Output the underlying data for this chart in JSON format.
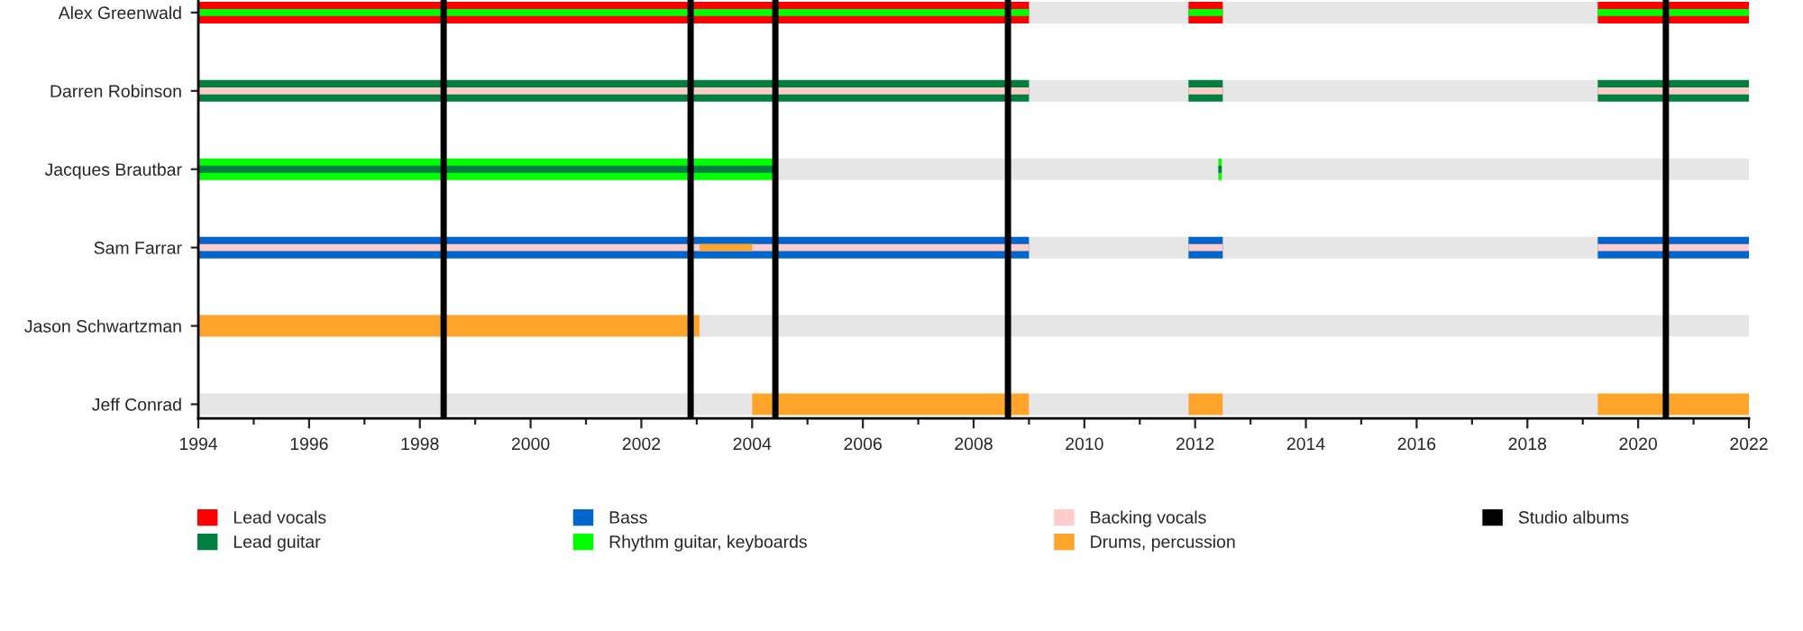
{
  "chart_data": {
    "type": "bar",
    "orientation": "horizontal",
    "categories": [
      "Alex Greenwald",
      "Darren Robinson",
      "Jacques Brautbar",
      "Sam Farrar",
      "Jason Schwartzman",
      "Jeff Conrad"
    ],
    "series": [
      {
        "color": "#e6e6e6",
        "base": [
          2009.0,
          2009.0,
          2004.45,
          2009.0,
          2003.05,
          1994
        ],
        "values": [
          2.88,
          2.88,
          17.55,
          2.88,
          18.95,
          10.0
        ]
      },
      {
        "color": "#e6e6e6",
        "base": [
          2012.5,
          2012.5,
          null,
          2012.5,
          null,
          2009.0
        ],
        "values": [
          6.77,
          6.77,
          null,
          6.77,
          null,
          2.88
        ]
      },
      {
        "color": "#e6e6e6",
        "base": [
          null,
          null,
          null,
          null,
          null,
          2012.5
        ],
        "values": [
          null,
          null,
          null,
          null,
          null,
          6.77
        ]
      },
      {
        "name": "Lead vocals",
        "color": "#ff0000",
        "base": [
          1994,
          null,
          null,
          null,
          null,
          null
        ],
        "values": [
          15.0,
          null,
          null,
          null,
          null,
          null
        ]
      },
      {
        "color": "#ff0000",
        "base": [
          2011.88,
          null,
          null,
          null,
          null,
          null
        ],
        "values": [
          0.62,
          null,
          null,
          null,
          null,
          null
        ]
      },
      {
        "color": "#ff0000",
        "base": [
          2019.27,
          null,
          null,
          null,
          null,
          null
        ],
        "values": [
          2.73,
          null,
          null,
          null,
          null,
          null
        ]
      },
      {
        "name": "Lead guitar",
        "color": "#007f3f",
        "base": [
          null,
          1994,
          null,
          null,
          null,
          null
        ],
        "values": [
          null,
          15.0,
          null,
          null,
          null,
          null
        ]
      },
      {
        "color": "#007f3f",
        "base": [
          null,
          2011.88,
          null,
          null,
          null,
          null
        ],
        "values": [
          null,
          0.62,
          null,
          null,
          null,
          null
        ]
      },
      {
        "color": "#007f3f",
        "base": [
          null,
          2019.27,
          null,
          null,
          null,
          null
        ],
        "values": [
          null,
          2.73,
          null,
          null,
          null,
          null
        ]
      },
      {
        "name": "Bass",
        "color": "#0066cc",
        "base": [
          null,
          null,
          null,
          1994,
          null,
          null
        ],
        "values": [
          null,
          null,
          null,
          15.0,
          null,
          null
        ]
      },
      {
        "color": "#0066cc",
        "base": [
          null,
          null,
          null,
          2011.88,
          null,
          null
        ],
        "values": [
          null,
          null,
          null,
          0.62,
          null,
          null
        ]
      },
      {
        "color": "#0066cc",
        "base": [
          null,
          null,
          null,
          2019.27,
          null,
          null
        ],
        "values": [
          null,
          null,
          null,
          2.73,
          null,
          null
        ]
      },
      {
        "name": "Rhythm guitar, keyboards",
        "color": "#00ff00",
        "base": [
          1994,
          null,
          1994,
          null,
          null,
          null
        ],
        "values": [
          15.0,
          null,
          10.45,
          null,
          null,
          null
        ]
      },
      {
        "color": "#00ff00",
        "base": [
          2011.88,
          null,
          2012.42,
          null,
          null,
          null
        ],
        "values": [
          0.62,
          null,
          0.06,
          null,
          null,
          null
        ]
      },
      {
        "color": "#00ff00",
        "base": [
          2019.27,
          null,
          null,
          null,
          null,
          null
        ],
        "values": [
          2.73,
          null,
          null,
          null,
          null,
          null
        ]
      },
      {
        "color": "#007f3f",
        "base": [
          null,
          null,
          1994,
          null,
          null,
          null
        ],
        "values": [
          null,
          null,
          10.45,
          null,
          null,
          null
        ]
      },
      {
        "color": "#007f3f",
        "base": [
          null,
          null,
          2012.42,
          null,
          null,
          null
        ],
        "values": [
          null,
          null,
          0.06,
          null,
          null,
          null
        ]
      },
      {
        "name": "Backing vocals",
        "color": "#ffcccc",
        "base": [
          null,
          1994,
          null,
          1994,
          null,
          null
        ],
        "values": [
          null,
          15.0,
          null,
          15.0,
          null,
          null
        ]
      },
      {
        "color": "#ffcccc",
        "base": [
          null,
          2011.88,
          null,
          2011.88,
          null,
          null
        ],
        "values": [
          null,
          0.62,
          null,
          0.62,
          null,
          null
        ]
      },
      {
        "color": "#ffcccc",
        "base": [
          null,
          2019.27,
          null,
          2019.27,
          null,
          null
        ],
        "values": [
          null,
          2.73,
          null,
          2.73,
          null,
          null
        ]
      },
      {
        "name": "Drums, percussion",
        "color": "#ffa42b",
        "base": [
          null,
          null,
          null,
          2003.05,
          1994,
          2004.0
        ],
        "values": [
          null,
          null,
          null,
          0.95,
          9.05,
          5.0
        ]
      },
      {
        "color": "#ffa42b",
        "base": [
          null,
          null,
          null,
          null,
          null,
          2011.88
        ],
        "values": [
          null,
          null,
          null,
          null,
          null,
          0.62
        ]
      },
      {
        "color": "#ffa42b",
        "base": [
          null,
          null,
          null,
          null,
          null,
          2019.27
        ],
        "values": [
          null,
          null,
          null,
          null,
          null,
          2.73
        ]
      }
    ],
    "ref_lines": [
      {
        "axis": "x",
        "value": 1998.43,
        "label": "Studio albums",
        "color": "#000000"
      },
      {
        "axis": "x",
        "value": 2002.89,
        "color": "#000000"
      },
      {
        "axis": "x",
        "value": 2004.42,
        "color": "#000000"
      },
      {
        "axis": "x",
        "value": 2008.62,
        "color": "#000000"
      },
      {
        "axis": "x",
        "value": 2020.5,
        "color": "#000000"
      }
    ],
    "xlim": [
      1994,
      2022
    ],
    "xticks": [
      1994,
      1996,
      1998,
      2000,
      2002,
      2004,
      2006,
      2008,
      2010,
      2012,
      2014,
      2016,
      2018,
      2020,
      2022
    ],
    "legend": "bottom",
    "grid": false
  }
}
